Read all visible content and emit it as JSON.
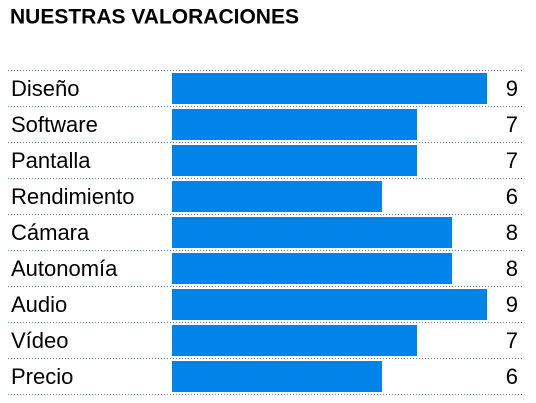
{
  "chart_data": {
    "type": "bar",
    "title": "NUESTRAS VALORACIONES",
    "categories": [
      "Diseño",
      "Software",
      "Pantalla",
      "Rendimiento",
      "Cámara",
      "Autonomía",
      "Audio",
      "Vídeo",
      "Precio"
    ],
    "values": [
      9,
      7,
      7,
      6,
      8,
      8,
      9,
      7,
      6
    ],
    "color": "#0084e9"
  }
}
